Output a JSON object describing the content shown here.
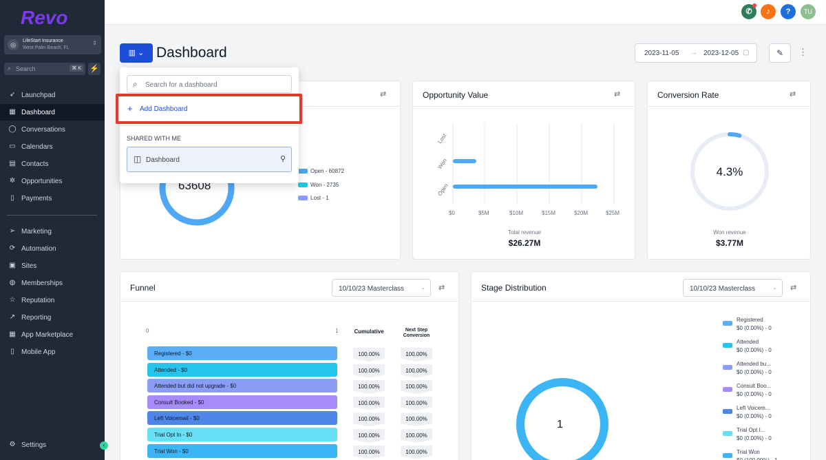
{
  "sidebar": {
    "logo": "Revo",
    "location": {
      "name": "LifeStart Insurance",
      "city": "West Palm Beach, FL"
    },
    "search": {
      "placeholder": "Search",
      "shortcut": "⌘ K"
    },
    "items": [
      {
        "label": "Launchpad",
        "icon": "rocket-icon"
      },
      {
        "label": "Dashboard",
        "icon": "grid-icon",
        "active": true
      },
      {
        "label": "Conversations",
        "icon": "chat-icon"
      },
      {
        "label": "Calendars",
        "icon": "calendar-icon"
      },
      {
        "label": "Contacts",
        "icon": "contacts-icon"
      },
      {
        "label": "Opportunities",
        "icon": "opportunities-icon"
      },
      {
        "label": "Payments",
        "icon": "payments-icon"
      }
    ],
    "items2": [
      {
        "label": "Marketing",
        "icon": "send-icon"
      },
      {
        "label": "Automation",
        "icon": "automation-icon"
      },
      {
        "label": "Sites",
        "icon": "sites-icon"
      },
      {
        "label": "Memberships",
        "icon": "memberships-icon"
      },
      {
        "label": "Reputation",
        "icon": "star-icon"
      },
      {
        "label": "Reporting",
        "icon": "reporting-icon"
      },
      {
        "label": "App Marketplace",
        "icon": "marketplace-icon"
      },
      {
        "label": "Mobile App",
        "icon": "mobile-icon"
      }
    ],
    "settings": "Settings"
  },
  "topbar": {
    "avatar": "TU",
    "help": "?"
  },
  "header": {
    "title": "Dashboard",
    "date_from": "2023-11-05",
    "date_to": "2023-12-05"
  },
  "dropdown": {
    "search_placeholder": "Search for a dashboard",
    "add_label": "Add Dashboard",
    "shared_heading": "SHARED WITH ME",
    "shared_item": "Dashboard"
  },
  "opportunity_status": {
    "center_value": "63608",
    "legend": [
      {
        "label": "Open - 60872",
        "color": "#4ea8f5"
      },
      {
        "label": "Won - 2735",
        "color": "#22c7e8"
      },
      {
        "label": "Lost - 1",
        "color": "#8b9cf6"
      }
    ]
  },
  "opportunity_value": {
    "title": "Opportunity Value",
    "categories": [
      "Lost",
      "Won",
      "Open"
    ],
    "x_ticks": [
      "$0",
      "$5M",
      "$10M",
      "$15M",
      "$20M",
      "$25M"
    ],
    "total_label": "Total revenue",
    "total_value": "$26.27M"
  },
  "conversion_rate": {
    "title": "Conversion Rate",
    "value": "4.3%",
    "sub_label": "Won revenue",
    "sub_value": "$3.77M"
  },
  "funnel": {
    "title": "Funnel",
    "select": "10/10/23 Masterclass",
    "axis_start": "0",
    "axis_end": "1",
    "col_cumulative": "Cumulative",
    "col_next": "Next Step Conversion",
    "rows": [
      {
        "label": "Registered - $0",
        "color": "#5aaef7",
        "cum": "100.00%",
        "next": "100.00%"
      },
      {
        "label": "Attended - $0",
        "color": "#25c4ea",
        "cum": "100.00%",
        "next": "100.00%"
      },
      {
        "label": "Attended but did not upgrade - $0",
        "color": "#8b9cf6",
        "cum": "100.00%",
        "next": "100.00%"
      },
      {
        "label": "Consult Booked - $0",
        "color": "#a78bfa",
        "cum": "100.00%",
        "next": "100.00%"
      },
      {
        "label": "Left Voicemail - $0",
        "color": "#4f86ea",
        "cum": "100.00%",
        "next": "100.00%"
      },
      {
        "label": "Trial Opt In - $0",
        "color": "#67e0f5",
        "cum": "100.00%",
        "next": "100.00%"
      },
      {
        "label": "Trial Won - $0",
        "color": "#3bb5f6",
        "cum": "100.00%",
        "next": "100.00%"
      }
    ]
  },
  "stage_distribution": {
    "title": "Stage Distribution",
    "select": "10/10/23 Masterclass",
    "center_value": "1",
    "legend": [
      {
        "name": "Registered",
        "value": "$0 (0.00%) - 0",
        "color": "#5aaef7"
      },
      {
        "name": "Attended",
        "value": "$0 (0.00%) - 0",
        "color": "#25c4ea"
      },
      {
        "name": "Attended bu...",
        "value": "$0 (0.00%) - 0",
        "color": "#8b9cf6"
      },
      {
        "name": "Consult Boo...",
        "value": "$0 (0.00%) - 0",
        "color": "#a78bfa"
      },
      {
        "name": "Left Voicem...",
        "value": "$0 (0.00%) - 0",
        "color": "#4f86ea"
      },
      {
        "name": "Trial Opt I...",
        "value": "$0 (0.00%) - 0",
        "color": "#67e0f5"
      },
      {
        "name": "Trial Won",
        "value": "$0 (100.00%) - 1",
        "color": "#3bb5f6"
      }
    ]
  }
}
